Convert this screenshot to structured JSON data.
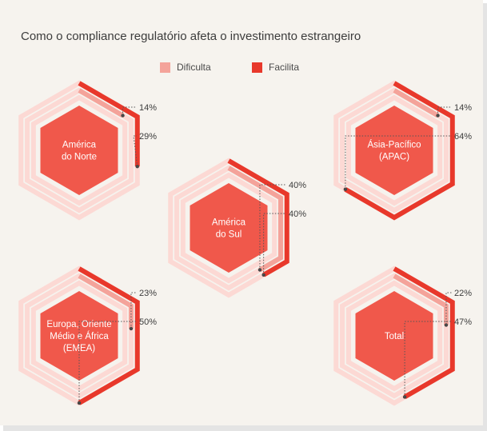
{
  "chart_data": {
    "type": "radial-hexagon",
    "title": "Como o compliance regulatório afeta o investimento estrangeiro",
    "legend": [
      {
        "label": "Dificulta",
        "color": "#f4a39a"
      },
      {
        "label": "Facilita",
        "color": "#e8382b"
      }
    ],
    "max": 100,
    "regions": [
      {
        "name": "América do Norte",
        "lines": [
          "América",
          "do Norte"
        ],
        "dificulta": 14,
        "facilita": 29,
        "dificulta_label": "14%",
        "facilita_label": "29%"
      },
      {
        "name": "Ásia-Pacífico (APAC)",
        "lines": [
          "Ásia-Pacífico",
          "(APAC)"
        ],
        "dificulta": 14,
        "facilita": 64,
        "dificulta_label": "14%",
        "facilita_label": "64%"
      },
      {
        "name": "América do Sul",
        "lines": [
          "América",
          "do Sul"
        ],
        "dificulta": 40,
        "facilita": 40,
        "dificulta_label": "40%",
        "facilita_label": "40%"
      },
      {
        "name": "Europa, Oriente Médio e África (EMEA)",
        "lines": [
          "Europa, Oriente",
          "Médio e África",
          "(EMEA)"
        ],
        "dificulta": 23,
        "facilita": 50,
        "dificulta_label": "23%",
        "facilita_label": "50%"
      },
      {
        "name": "Total",
        "lines": [
          "Total"
        ],
        "dificulta": 22,
        "facilita": 47,
        "dificulta_label": "22%",
        "facilita_label": "47%"
      }
    ]
  },
  "colors": {
    "background": "#f6f3ee",
    "track": "#fcd9d4",
    "dificulta": "#f4a39a",
    "facilita": "#e8382b",
    "core": "#f0584b",
    "text": "#3c3c3c",
    "annotation": "#555555"
  }
}
